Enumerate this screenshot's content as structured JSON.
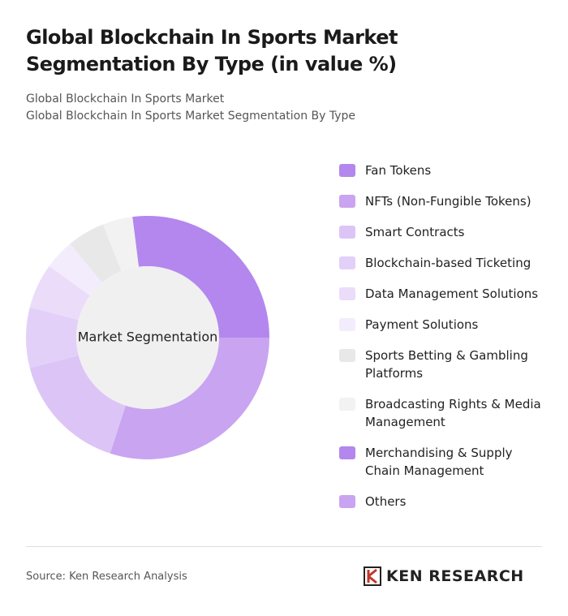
{
  "chart_data": {
    "type": "donut",
    "title": "Global Blockchain In Sports Market Segmentation By Type (in value %)",
    "subtitle": [
      "Global Blockchain In Sports Market",
      "Global Blockchain In Sports Market Segmentation By Type"
    ],
    "center_label": "Market Segmentation",
    "categories": [
      "Fan Tokens",
      "NFTs (Non-Fungible Tokens)",
      "Smart Contracts",
      "Blockchain-based Ticketing",
      "Data Management Solutions",
      "Payment Solutions",
      "Sports Betting & Gambling Platforms",
      "Broadcasting Rights & Media Management",
      "Merchandising & Supply Chain Management",
      "Others"
    ],
    "values": [
      27,
      30,
      16,
      8,
      6,
      4,
      5,
      4,
      0,
      0
    ],
    "colors": [
      "#b387ee",
      "#c9a4f0",
      "#dcc5f6",
      "#e3d0f8",
      "#ebdcfa",
      "#f3ecfc",
      "#e8e8e8",
      "#f2f2f2",
      "#b387ee",
      "#c9a4f0"
    ]
  },
  "footer": {
    "source": "Source: Ken Research Analysis",
    "brand": "KEN RESEARCH"
  }
}
